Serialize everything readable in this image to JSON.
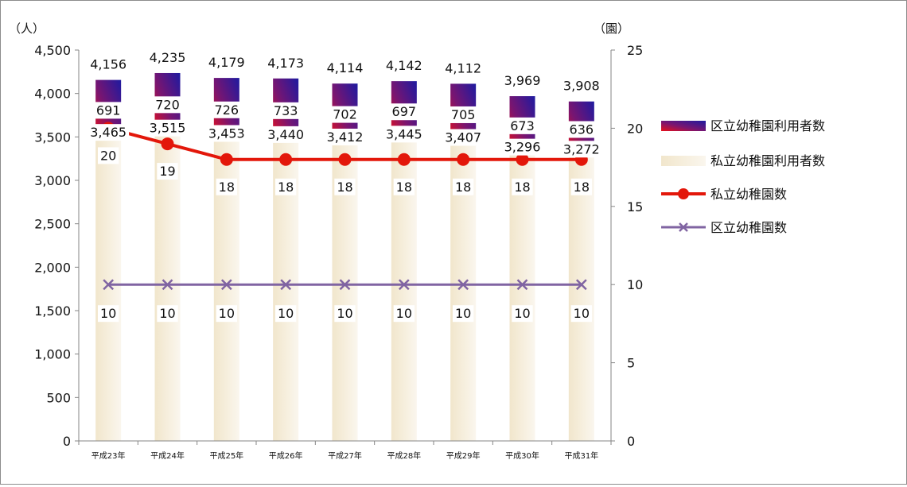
{
  "chart_data": {
    "type": "bar",
    "categories": [
      "平成23年",
      "平成24年",
      "平成25年",
      "平成26年",
      "平成27年",
      "平成28年",
      "平成29年",
      "平成30年",
      "平成31年"
    ],
    "left_axis": {
      "unit_label": "（人）",
      "ylim": [
        0,
        4500
      ],
      "ticks": [
        "0",
        "500",
        "1,000",
        "1,500",
        "2,000",
        "2,500",
        "3,000",
        "3,500",
        "4,000",
        "4,500"
      ]
    },
    "right_axis": {
      "unit_label": "（園）",
      "ylim": [
        0,
        25
      ],
      "ticks": [
        "0",
        "5",
        "10",
        "15",
        "20",
        "25"
      ]
    },
    "series": [
      {
        "name": "私立幼稚園利用者数",
        "kind": "bar",
        "axis": "left",
        "values": [
          3465,
          3515,
          3453,
          3440,
          3412,
          3445,
          3407,
          3296,
          3272
        ],
        "labels": [
          "3,465",
          "3,515",
          "3,453",
          "3,440",
          "3,412",
          "3,445",
          "3,407",
          "3,296",
          "3,272"
        ],
        "color": "#f3ead3"
      },
      {
        "name": "区立幼稚園利用者数",
        "kind": "bar",
        "axis": "left",
        "values": [
          691,
          720,
          726,
          733,
          702,
          697,
          705,
          673,
          636
        ],
        "labels": [
          "691",
          "720",
          "726",
          "733",
          "702",
          "697",
          "705",
          "673",
          "636"
        ],
        "color": "#3a1a9c"
      },
      {
        "name": "私立幼稚園数",
        "kind": "line",
        "axis": "right",
        "values": [
          20,
          19,
          18,
          18,
          18,
          18,
          18,
          18,
          18
        ],
        "labels": [
          "20",
          "19",
          "18",
          "18",
          "18",
          "18",
          "18",
          "18",
          "18"
        ],
        "color": "#e3170a"
      },
      {
        "name": "区立幼稚園数",
        "kind": "line",
        "axis": "right",
        "values": [
          10,
          10,
          10,
          10,
          10,
          10,
          10,
          10,
          10
        ],
        "labels": [
          "10",
          "10",
          "10",
          "10",
          "10",
          "10",
          "10",
          "10",
          "10"
        ],
        "color": "#8064a2"
      }
    ],
    "totals": {
      "values": [
        4156,
        4235,
        4179,
        4173,
        4114,
        4142,
        4112,
        3969,
        3908
      ],
      "labels": [
        "4,156",
        "4,235",
        "4,179",
        "4,173",
        "4,114",
        "4,142",
        "4,112",
        "3,969",
        "3,908"
      ]
    },
    "legend_position": "right",
    "grid": false
  }
}
